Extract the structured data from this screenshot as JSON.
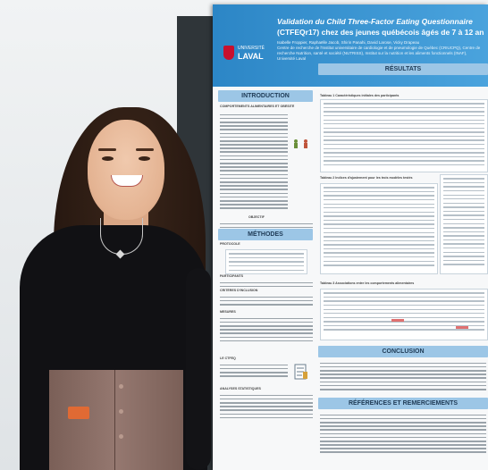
{
  "image": {
    "description_words_shown": false
  },
  "poster": {
    "title_line1": "Validation du Child Three-Factor Eating Questionnaire",
    "title_line2": "(CTFEQr17) chez des jeunes québécois âgés de 7 à 12 ans",
    "authors": "Isabelle Froppier, Raphaëlle Jacob, Shirin Panahi, David Larose, Vicky Drapeau",
    "affiliation": "Centre de recherche de l'Institut universitaire de cardiologie et de pneumologie de Québec (CRIUCPQ), Centre de recherche Nutrition, santé et société (NUTRISS), Institut sur la nutrition et les aliments fonctionnels (INAF), Université Laval",
    "logo_top": "UNIVERSITÉ",
    "logo_name": "LAVAL",
    "sections": {
      "introduction": "INTRODUCTION",
      "methodes": "MÉTHODES",
      "resultats": "RÉSULTATS",
      "conclusion": "CONCLUSION",
      "references": "RÉFÉRENCES ET REMERCIEMENTS"
    },
    "intro_sub": "COMPORTEMENTS ALIMENTAIRES ET OBÉSITÉ",
    "objectif": "OBJECTIF",
    "protocole": "PROTOCOLE",
    "participants": "PARTICIPANTS",
    "criteres": "CRITÈRES D'INCLUSION",
    "mesures": "MESURES",
    "table1_title": "Tableau 1 Caractéristiques initiales des participants",
    "table2_title": "Tableau 2 Indices d'ajustement pour les trois modèles testés",
    "table3_title": "Tableau 3 Associations entre les comportements alimentaires",
    "le_ctfeq": "LE CTFEQ",
    "analyses": "ANALYSES STATISTIQUES"
  }
}
